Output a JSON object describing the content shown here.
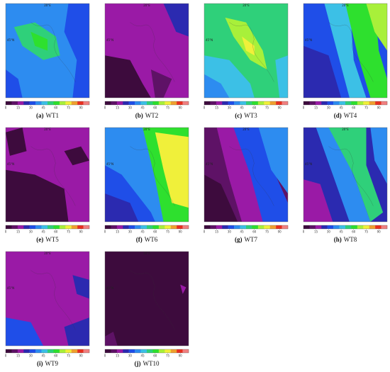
{
  "lon_label": "20°E",
  "lat_label": "45°N",
  "colorbar": {
    "lim": [
      0,
      100
    ],
    "ticks": [
      0,
      15,
      30,
      45,
      60,
      75,
      90
    ],
    "colors": [
      "#3d0b3d",
      "#5e1266",
      "#9a1aa6",
      "#2b2ab0",
      "#1f4ee8",
      "#2d8cf0",
      "#3cc0e6",
      "#2fd07a",
      "#2ee02e",
      "#a8f03a",
      "#f0f03a",
      "#f0a030",
      "#e83020",
      "#f08080"
    ]
  },
  "panels": [
    {
      "letter": "(a)",
      "name": "WT1"
    },
    {
      "letter": "(b)",
      "name": "WT2"
    },
    {
      "letter": "(c)",
      "name": "WT3"
    },
    {
      "letter": "(d)",
      "name": "WT4"
    },
    {
      "letter": "(e)",
      "name": "WT5"
    },
    {
      "letter": "(f)",
      "name": "WT6"
    },
    {
      "letter": "(g)",
      "name": "WT7"
    },
    {
      "letter": "(h)",
      "name": "WT8"
    },
    {
      "letter": "(i)",
      "name": "WT9"
    },
    {
      "letter": "(j)",
      "name": "WT10"
    }
  ]
}
